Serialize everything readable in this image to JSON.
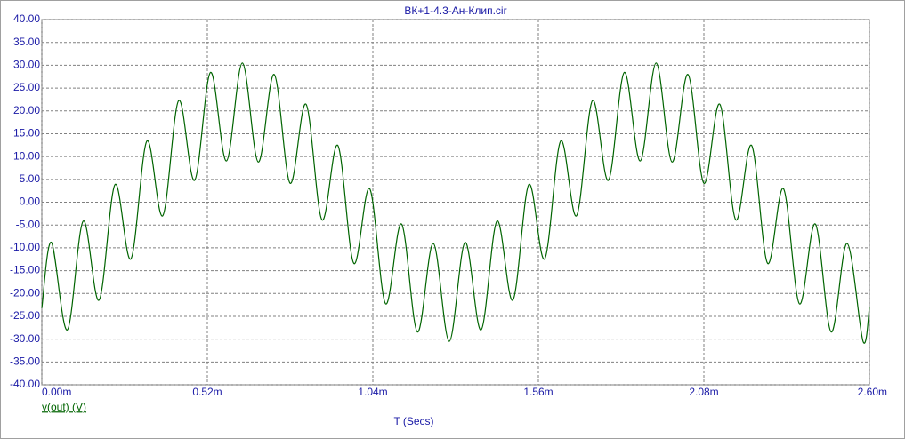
{
  "chart_data": {
    "type": "line",
    "title": "ВК+1-4.3-Ан-Клип.cir",
    "x_label": "T (Secs)",
    "x": [
      0,
      0.03,
      0.08,
      0.13,
      0.18,
      0.23,
      0.28,
      0.33,
      0.38,
      0.43,
      0.48,
      0.53,
      0.58,
      0.63,
      0.68,
      0.73,
      0.78,
      0.83,
      0.88,
      0.93,
      0.98,
      1.03,
      1.08,
      1.13,
      1.18,
      1.23,
      1.28,
      1.33,
      1.38,
      1.43,
      1.48,
      1.53,
      1.58,
      1.63,
      1.68,
      1.73,
      1.78,
      1.83,
      1.88,
      1.93,
      1.98,
      2.03,
      2.08,
      2.13,
      2.18,
      2.23,
      2.28,
      2.33,
      2.38,
      2.43,
      2.48,
      2.53,
      2.58,
      2.6
    ],
    "series": [
      {
        "name": "v(out) (V)",
        "color": "#006400",
        "values": [
          -23.2,
          -8.8,
          -27.98,
          -4.14,
          -21.46,
          3.86,
          -12.43,
          13.39,
          -2.96,
          22.26,
          4.79,
          28.43,
          9.03,
          30.49,
          8.8,
          27.98,
          4.15,
          21.46,
          -3.86,
          12.43,
          -13.39,
          2.96,
          -22.26,
          -4.78,
          -28.43,
          -9.03,
          -30.49,
          -8.8,
          -27.98,
          -4.14,
          -21.46,
          3.86,
          -12.43,
          13.39,
          -2.96,
          22.26,
          4.79,
          28.43,
          9.03,
          30.49,
          8.8,
          27.98,
          4.15,
          21.46,
          -3.86,
          12.43,
          -13.39,
          2.96,
          -22.26,
          -4.78,
          -28.43,
          -9.03,
          -30.49,
          -23.1
        ]
      }
    ],
    "xlim": [
      0,
      2.6
    ],
    "xticks": [
      {
        "value": 0,
        "label": "0.00m"
      },
      {
        "value": 0.52,
        "label": "0.52m"
      },
      {
        "value": 1.04,
        "label": "1.04m"
      },
      {
        "value": 1.56,
        "label": "1.56m"
      },
      {
        "value": 2.08,
        "label": "2.08m"
      },
      {
        "value": 2.6,
        "label": "2.60m"
      }
    ],
    "ylim": [
      -40,
      40
    ],
    "yticks": [
      {
        "value": -40,
        "label": "-40.00"
      },
      {
        "value": -35,
        "label": "-35.00"
      },
      {
        "value": -30,
        "label": "-30.00"
      },
      {
        "value": -25,
        "label": "-25.00"
      },
      {
        "value": -20,
        "label": "-20.00"
      },
      {
        "value": -15,
        "label": "-15.00"
      },
      {
        "value": -10,
        "label": "-10.00"
      },
      {
        "value": -5,
        "label": "-5.00"
      },
      {
        "value": 0,
        "label": "0.00"
      },
      {
        "value": 5,
        "label": "5.00"
      },
      {
        "value": 10,
        "label": "10.00"
      },
      {
        "value": 15,
        "label": "15.00"
      },
      {
        "value": 20,
        "label": "20.00"
      },
      {
        "value": 25,
        "label": "25.00"
      },
      {
        "value": 30,
        "label": "30.00"
      },
      {
        "value": 35,
        "label": "35.00"
      },
      {
        "value": 40,
        "label": "40.00"
      }
    ],
    "grid": true
  }
}
